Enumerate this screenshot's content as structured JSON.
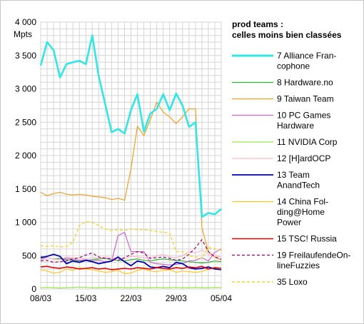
{
  "chart_data": {
    "type": "line",
    "title": "prod teams :\ncelles moins bien classées",
    "ylabel": "Mpts",
    "ylim": [
      0,
      4000
    ],
    "yticks": [
      0,
      500,
      1000,
      1500,
      2000,
      2500,
      3000,
      3500,
      4000
    ],
    "ytick_labels": [
      "0",
      "500",
      "1 000",
      "1 500",
      "2 000",
      "2 500",
      "3 000",
      "3 500",
      "4 000"
    ],
    "xtick_labels": [
      "08/03",
      "15/03",
      "22/03",
      "29/03",
      "05/04"
    ],
    "x_count": 29,
    "grid": true,
    "legend_position": "right",
    "series": [
      {
        "name": "7 Alliance Fran-\ncophone",
        "color": "#33e6e6",
        "dash": "",
        "width": 2.6,
        "values": [
          3350,
          3700,
          3580,
          3170,
          3370,
          3400,
          3420,
          3370,
          3800,
          3190,
          2770,
          2350,
          2400,
          2330,
          2680,
          2920,
          2360,
          2630,
          2700,
          2920,
          2680,
          2930,
          2750,
          2430,
          2500,
          1080,
          1140,
          1120,
          1200
        ]
      },
      {
        "name": "8 Hardware.no",
        "color": "#2bb534",
        "dash": "",
        "width": 1.2,
        "values": [
          490,
          470,
          450,
          460,
          440,
          430,
          420,
          430,
          440,
          450,
          460,
          440,
          430,
          420,
          440,
          450,
          430,
          420,
          440,
          450,
          440,
          430,
          420,
          410,
          400,
          390,
          400,
          420,
          410
        ]
      },
      {
        "name": "9 Taiwan Team",
        "color": "#f0a020",
        "dash": "",
        "width": 1.2,
        "values": [
          1450,
          1400,
          1430,
          1450,
          1420,
          1410,
          1420,
          1410,
          1390,
          1380,
          1370,
          1340,
          1360,
          1330,
          1800,
          2440,
          2300,
          2540,
          2800,
          2650,
          2580,
          2480,
          2580,
          2700,
          2700,
          920,
          560,
          480,
          430
        ]
      },
      {
        "name": "10 PC Games\nHardware",
        "color": "#cc66cc",
        "dash": "",
        "width": 1.2,
        "values": [
          440,
          470,
          450,
          440,
          460,
          450,
          430,
          440,
          420,
          430,
          410,
          420,
          800,
          850,
          560,
          560,
          560,
          400,
          380,
          370,
          360,
          370,
          380,
          420,
          430,
          470,
          420,
          550,
          600
        ]
      },
      {
        "name": "11 NVIDIA Corp",
        "color": "#99e64c",
        "dash": "",
        "width": 1.2,
        "values": [
          20,
          25,
          20,
          15,
          20,
          25,
          30,
          25,
          20,
          20,
          25,
          20,
          25,
          20,
          20,
          25,
          20,
          20,
          25,
          20,
          20,
          25,
          20,
          20,
          25,
          20,
          20,
          25,
          20
        ]
      },
      {
        "name": "12 [H]ardOCP",
        "color": "#ffb6c8",
        "dash": "",
        "width": 1.2,
        "values": [
          460,
          470,
          450,
          440,
          480,
          470,
          460,
          450,
          470,
          460,
          480,
          470,
          460,
          450,
          490,
          480,
          470,
          460,
          500,
          520,
          480,
          470,
          500,
          560,
          540,
          580,
          520,
          500,
          480
        ]
      },
      {
        "name": "13 Team\nAnandTech",
        "color": "#0000b0",
        "dash": "",
        "width": 1.8,
        "values": [
          470,
          490,
          520,
          490,
          380,
          420,
          400,
          430,
          410,
          380,
          400,
          420,
          480,
          410,
          350,
          420,
          400,
          330,
          320,
          340,
          320,
          400,
          380,
          320,
          300,
          310,
          330,
          300,
          290
        ]
      },
      {
        "name": "14 China Fol-\nding@Home\nPower",
        "color": "#ffc820",
        "dash": "",
        "width": 1.2,
        "values": [
          290,
          270,
          240,
          250,
          300,
          280,
          320,
          300,
          290,
          270,
          250,
          260,
          280,
          230,
          240,
          280,
          300,
          270,
          260,
          280,
          290,
          250,
          270,
          260,
          250,
          260,
          300,
          320,
          300
        ]
      },
      {
        "name": "15 TSC! Russia",
        "color": "#e60000",
        "dash": "",
        "width": 1.6,
        "values": [
          330,
          340,
          320,
          310,
          330,
          320,
          300,
          310,
          320,
          300,
          310,
          290,
          300,
          310,
          300,
          320,
          310,
          300,
          320,
          310,
          300,
          320,
          310,
          330,
          320,
          340,
          300,
          320,
          310
        ]
      },
      {
        "name": "19 FreilaufendeOn-\nlineFuzzies",
        "color": "#990066",
        "dash": "4,3",
        "width": 1.2,
        "values": [
          420,
          430,
          400,
          410,
          420,
          450,
          470,
          510,
          540,
          480,
          460,
          450,
          430,
          470,
          520,
          560,
          540,
          460,
          470,
          480,
          460,
          430,
          450,
          520,
          620,
          740,
          560,
          480,
          450
        ]
      },
      {
        "name": "35 Loxo",
        "color": "#f5d32c",
        "dash": "4,3",
        "width": 1.4,
        "values": [
          650,
          640,
          650,
          630,
          640,
          700,
          950,
          1010,
          1000,
          950,
          900,
          880,
          890,
          880,
          900,
          890,
          890,
          880,
          860,
          850,
          840,
          560,
          560,
          500,
          480,
          460,
          620,
          600,
          580
        ]
      }
    ]
  }
}
